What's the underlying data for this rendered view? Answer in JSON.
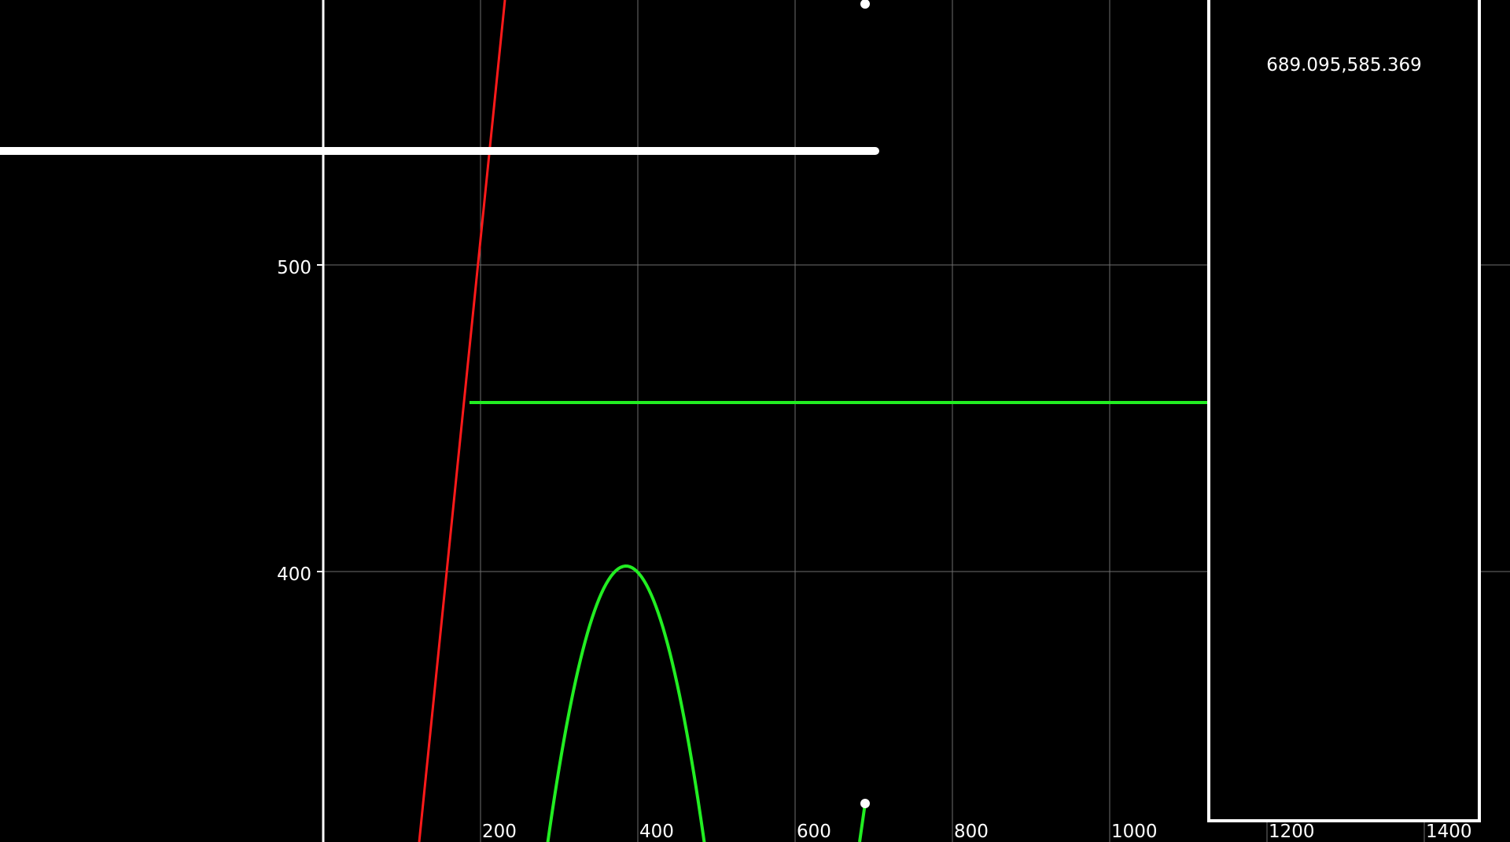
{
  "plot": {
    "background": "#000000",
    "grid_color": "#6e6e6e",
    "axis_color": "#ffffff",
    "x_ticks": [
      "200",
      "400",
      "600",
      "800",
      "1000",
      "1200",
      "1400"
    ],
    "y_ticks": [
      "400",
      "500"
    ]
  },
  "curves": {
    "red_line_color": "#ff1a1a",
    "green_color": "#22ee22",
    "white_bar_color": "#ffffff"
  },
  "readout": {
    "value": "689.095,585.369"
  }
}
